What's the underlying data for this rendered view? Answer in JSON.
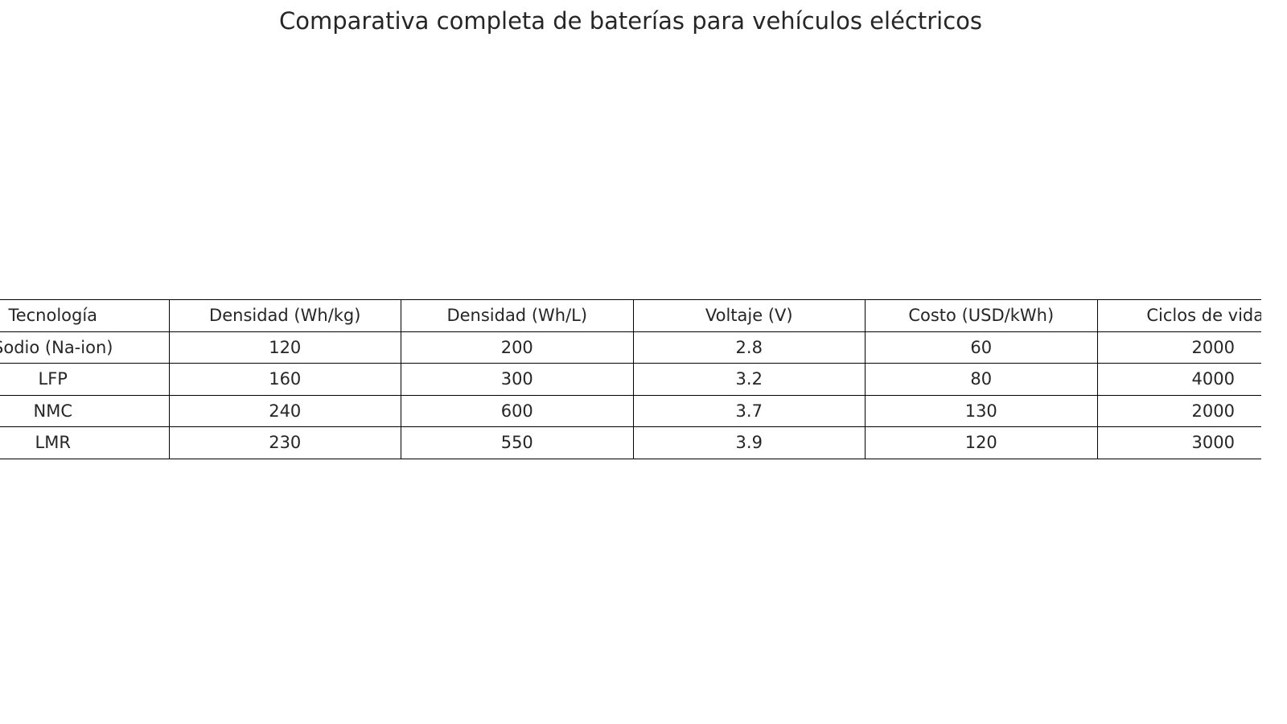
{
  "chart_data": {
    "type": "table",
    "title": "Comparativa completa de baterías para vehículos eléctricos",
    "columns": [
      "Tecnología",
      "Densidad (Wh/kg)",
      "Densidad (Wh/L)",
      "Voltaje (V)",
      "Costo (USD/kWh)",
      "Ciclos de vida u"
    ],
    "rows": [
      [
        "Sodio (Na-ion)",
        "120",
        "200",
        "2.8",
        "60",
        "2000"
      ],
      [
        "LFP",
        "160",
        "300",
        "3.2",
        "80",
        "4000"
      ],
      [
        "NMC",
        "240",
        "600",
        "3.7",
        "130",
        "2000"
      ],
      [
        "LMR",
        "230",
        "550",
        "3.9",
        "120",
        "3000"
      ]
    ]
  }
}
